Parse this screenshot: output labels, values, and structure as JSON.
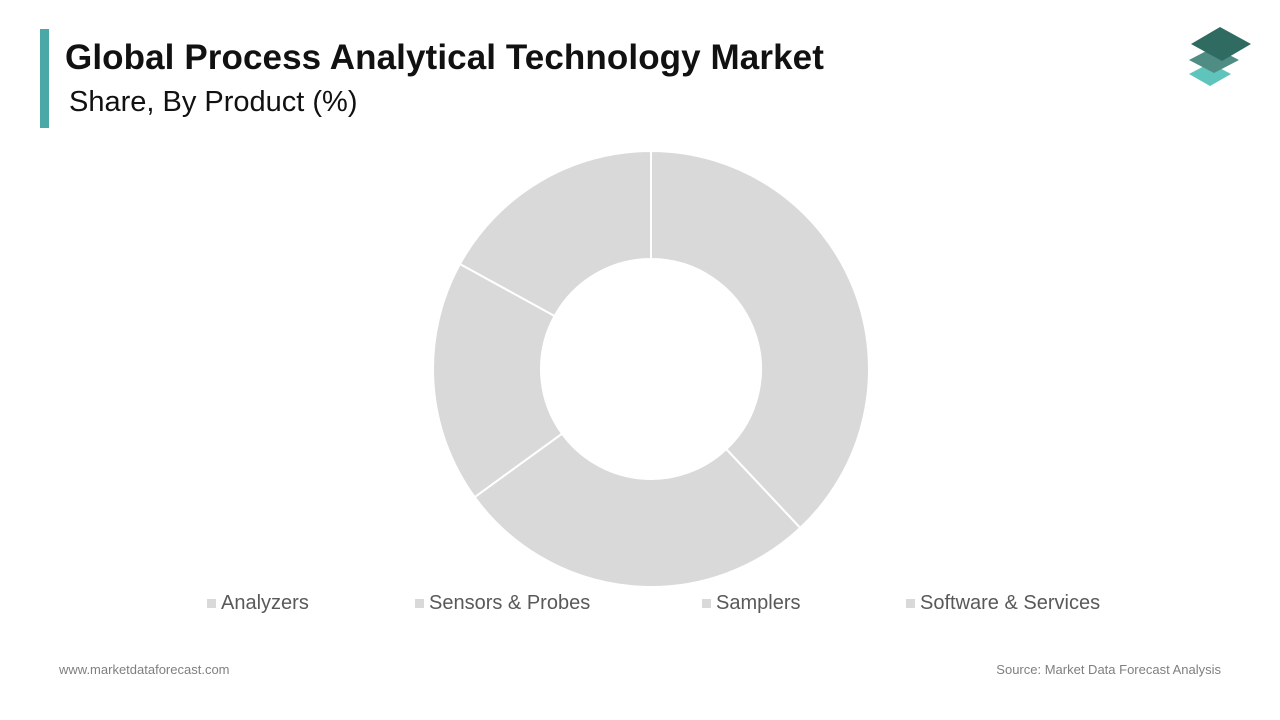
{
  "header": {
    "title": "Global Process Analytical Technology Market",
    "subtitle": "Share, By Product (%)"
  },
  "logo": {
    "icon": "stacked-layers-logo-icon",
    "colors": [
      "#2f6b61",
      "#4f8c84",
      "#5fc4bb"
    ]
  },
  "chart_data": {
    "type": "pie",
    "style": "donut",
    "title": "Global Process Analytical Technology Market",
    "subtitle": "Share, By Product (%)",
    "categories": [
      "Analyzers",
      "Sensors & Probes",
      "Samplers",
      "Software & Services"
    ],
    "values": [
      38,
      27,
      18,
      17
    ],
    "colors": [
      "#d9d9d9",
      "#d9d9d9",
      "#d9d9d9",
      "#d9d9d9"
    ],
    "legend_position": "bottom",
    "data_labels": false
  },
  "footer": {
    "website": "www.marketdataforecast.com",
    "source": "Source: Market Data Forecast Analysis"
  }
}
